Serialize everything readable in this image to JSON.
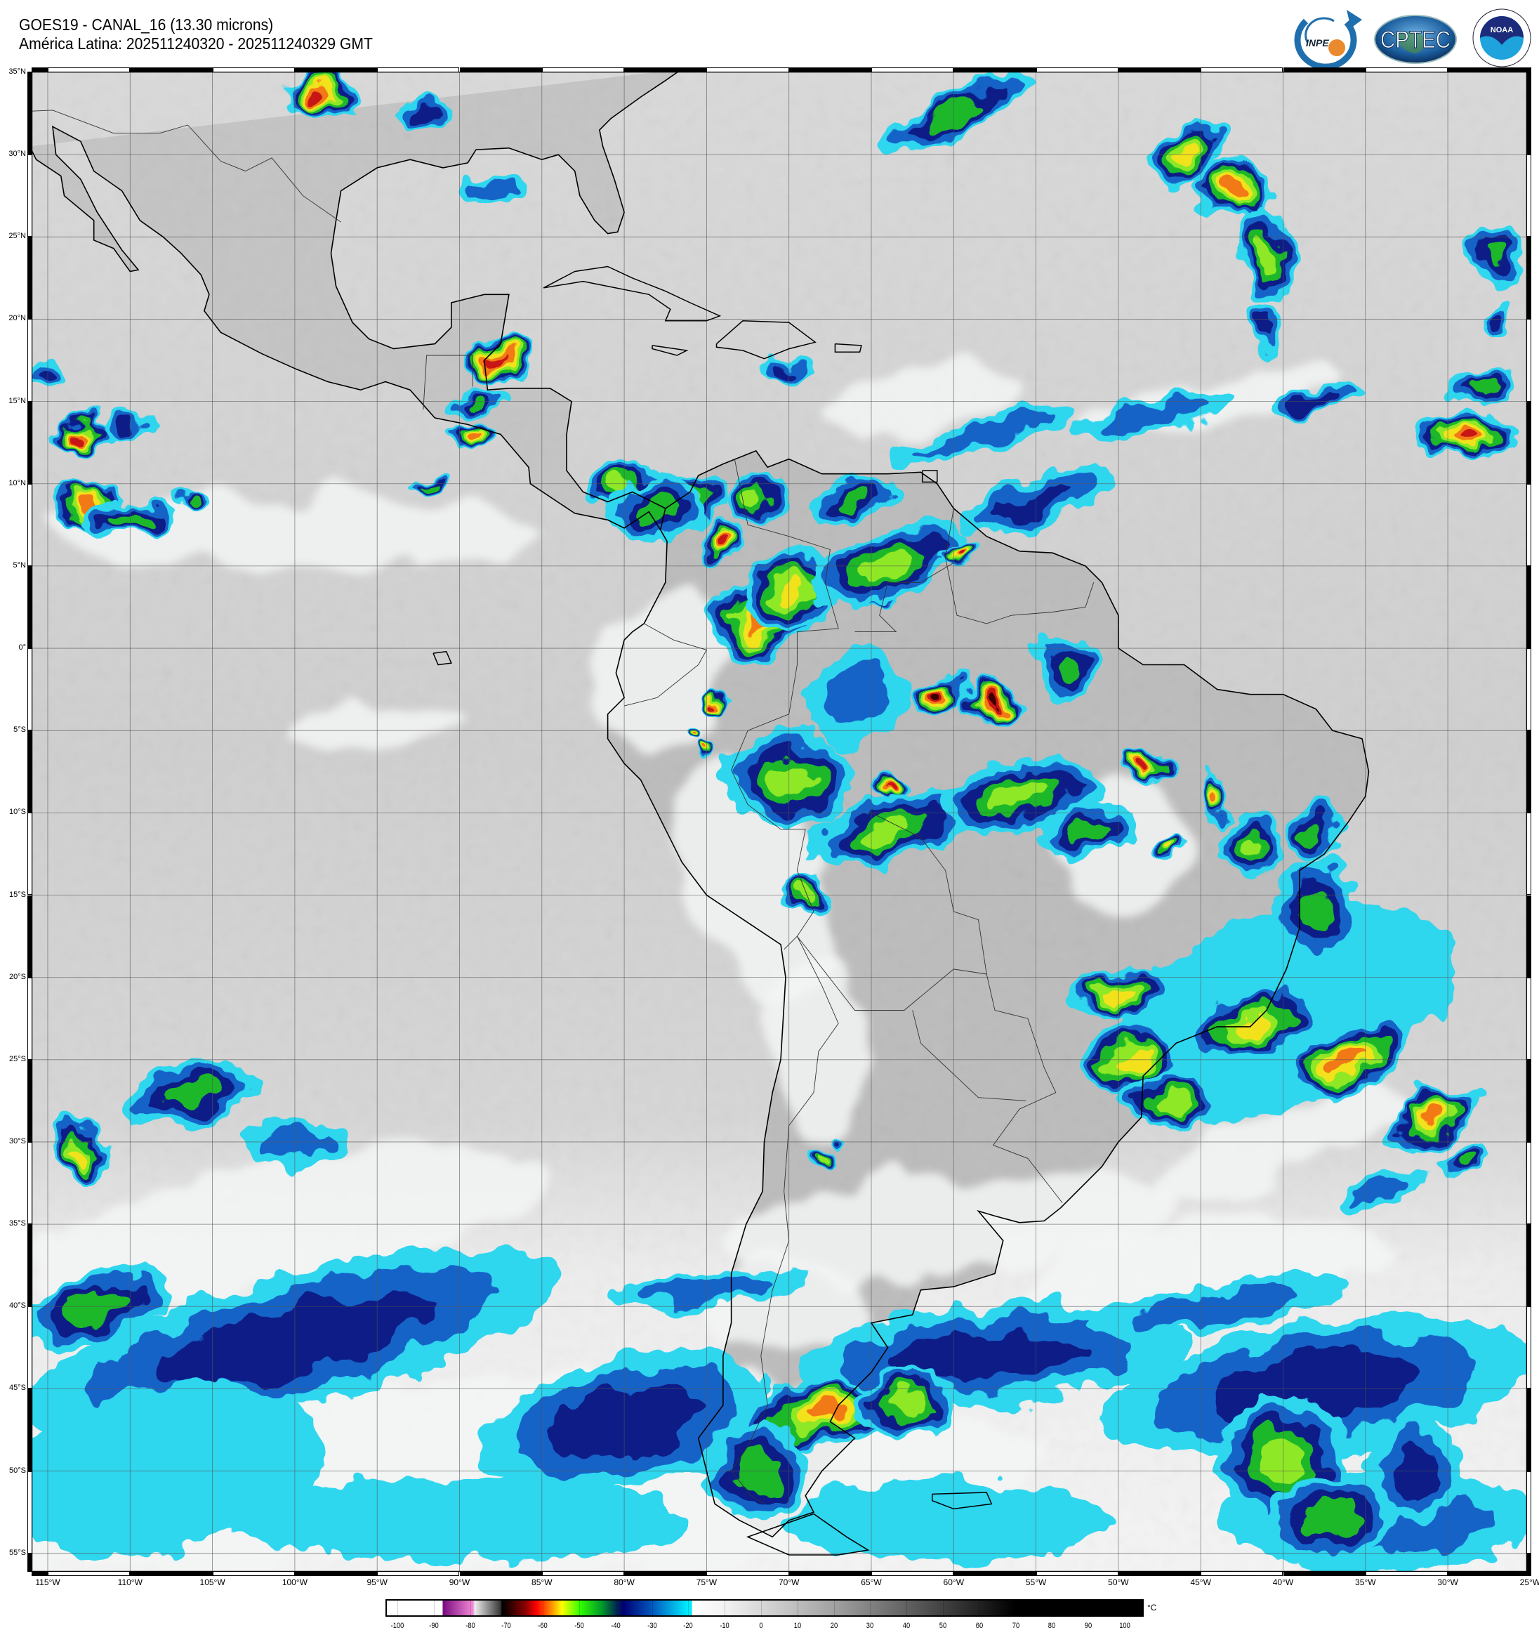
{
  "header": {
    "title": "GOES19 - CANAL_16 (13.30 microns)",
    "subtitle": "América Latina: 202511240320 - 202511240329 GMT"
  },
  "logos": {
    "inpe": "INPE",
    "cptec": "CPTEC",
    "noaa": "NOAA",
    "noaa_ring": "NATIONAL OCEANIC AND ATMOSPHERIC ADMINISTRATION · U.S. DEPARTMENT OF COMMERCE"
  },
  "map": {
    "lat_labels": [
      "35°N",
      "30°N",
      "25°N",
      "20°N",
      "15°N",
      "10°N",
      "5°N",
      "0°",
      "5°S",
      "10°S",
      "15°S",
      "20°S",
      "25°S",
      "30°S",
      "35°S",
      "40°S",
      "45°S",
      "50°S",
      "55°S"
    ],
    "lon_labels": [
      "115°W",
      "110°W",
      "105°W",
      "100°W",
      "95°W",
      "90°W",
      "85°W",
      "80°W",
      "75°W",
      "70°W",
      "65°W",
      "60°W",
      "55°W",
      "50°W",
      "45°W",
      "40°W",
      "35°W",
      "30°W",
      "25°W"
    ]
  },
  "colorbar": {
    "unit": "°C",
    "ticks": [
      "-100",
      "-90",
      "-80",
      "-70",
      "-60",
      "-50",
      "-40",
      "-30",
      "-20",
      "-10",
      "0",
      "10",
      "20",
      "30",
      "40",
      "50",
      "60",
      "70",
      "80",
      "90",
      "100"
    ],
    "colormap": [
      {
        "value": -103,
        "color": "#ffffff"
      },
      {
        "value": -88,
        "color": "#ffffff"
      },
      {
        "value": -87.8,
        "color": "#7a0a80"
      },
      {
        "value": -79.5,
        "color": "#f48ad8"
      },
      {
        "value": -79,
        "color": "#ececec"
      },
      {
        "value": -72,
        "color": "#3a3a3a"
      },
      {
        "value": -71.5,
        "color": "#000000"
      },
      {
        "value": -65,
        "color": "#8c0000"
      },
      {
        "value": -62,
        "color": "#ff0000"
      },
      {
        "value": -58,
        "color": "#ff8a00"
      },
      {
        "value": -55,
        "color": "#ffff00"
      },
      {
        "value": -50,
        "color": "#33ff00"
      },
      {
        "value": -44,
        "color": "#009a2a"
      },
      {
        "value": -40,
        "color": "#002a50"
      },
      {
        "value": -38,
        "color": "#000070"
      },
      {
        "value": -30,
        "color": "#0058c0"
      },
      {
        "value": -20,
        "color": "#00f0ff"
      },
      {
        "value": -19.2,
        "color": "#00e6f6"
      },
      {
        "value": -19,
        "color": "#ffffff"
      },
      {
        "value": -10,
        "color": "#f2f2f2"
      },
      {
        "value": 0,
        "color": "#d8d8d8"
      },
      {
        "value": 20,
        "color": "#a2a2a2"
      },
      {
        "value": 40,
        "color": "#626262"
      },
      {
        "value": 60,
        "color": "#222222"
      },
      {
        "value": 70,
        "color": "#000000"
      },
      {
        "value": 105,
        "color": "#000000"
      }
    ]
  }
}
